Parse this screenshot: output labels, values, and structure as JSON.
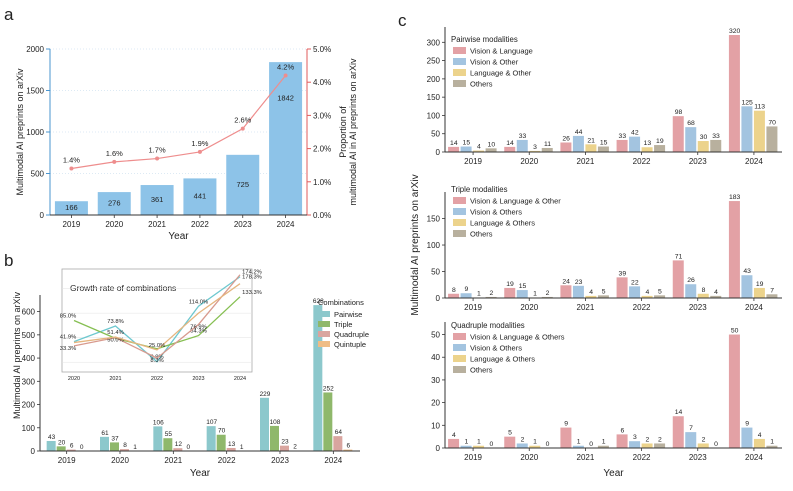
{
  "panels": {
    "a": "a",
    "b": "b",
    "c": "c"
  },
  "colors": {
    "bar_blue": "#8dc3e8",
    "line_red": "#ee8d8d",
    "axis_blue": "#4a95cf",
    "axis_red": "#e05b5b",
    "pairwise": "#8cc8cc",
    "triple": "#8fb86b",
    "quadruple": "#d9a59f",
    "quintuple": "#efbd86",
    "inset_pair": "#6dc8cf",
    "inset_triple": "#86bf52",
    "inset_quad": "#d89a8e",
    "inset_quin": "#e5b57f",
    "c_red": "#e3a1a5",
    "c_blue": "#a3c4e0",
    "c_yellow": "#ecd38c",
    "c_grey": "#b8b09e"
  },
  "chart_data": [
    {
      "id": "a",
      "type": "bar",
      "categories": [
        "2019",
        "2020",
        "2021",
        "2022",
        "2023",
        "2024"
      ],
      "values": [
        166,
        276,
        361,
        441,
        725,
        1842
      ],
      "value_labels": [
        "166",
        "276",
        "361",
        "441",
        "725",
        "1842"
      ],
      "line": [
        1.4,
        1.6,
        1.7,
        1.9,
        2.6,
        4.2
      ],
      "line_labels": [
        "1.4%",
        "1.6%",
        "1.7%",
        "1.9%",
        "2.6%",
        "4.2%"
      ],
      "xlabel": "Year",
      "ylabel": "Multimodal AI preprints on arXiv",
      "y2label_lines": [
        "Proportion of",
        "multimodal AI in AI preprints on arXiv"
      ],
      "ylim": [
        0,
        2000
      ],
      "yticks": [
        "0",
        "500",
        "1000",
        "1500",
        "2000"
      ],
      "y2lim": [
        0,
        5
      ],
      "y2ticks": [
        "0.0%",
        "1.0%",
        "2.0%",
        "3.0%",
        "4.0%",
        "5.0%"
      ]
    },
    {
      "id": "b",
      "type": "bar",
      "categories": [
        "2019",
        "2020",
        "2021",
        "2022",
        "2023",
        "2024"
      ],
      "series": [
        {
          "name": "Pairwise",
          "values": [
            43,
            61,
            106,
            107,
            229,
            628
          ]
        },
        {
          "name": "Triple",
          "values": [
            20,
            37,
            55,
            70,
            108,
            252
          ]
        },
        {
          "name": "Quadruple",
          "values": [
            6,
            8,
            12,
            13,
            23,
            64
          ]
        },
        {
          "name": "Quintuple",
          "values": [
            0,
            1,
            0,
            1,
            2,
            6
          ]
        }
      ],
      "xlabel": "Year",
      "ylabel": "Multimodal AI preprints on arXiv",
      "ylim": [
        0,
        650
      ],
      "yticks": [
        "0",
        "100",
        "200",
        "300",
        "400",
        "500",
        "600"
      ],
      "legend_title": "Combinations",
      "inset": {
        "type": "line",
        "title": "Growth rate of combinations",
        "categories": [
          "2020",
          "2021",
          "2022",
          "2023",
          "2024"
        ],
        "ylim": [
          -20,
          190
        ],
        "series": [
          {
            "name": "Pairwise",
            "values": [
              41.9,
              73.8,
              0.9,
              114.0,
              174.2
            ],
            "labels": [
              "41.9%",
              "73.8%",
              "0.9%",
              "114.0%",
              "174.2%"
            ]
          },
          {
            "name": "Triple",
            "values": [
              85.0,
              48.6,
              27.3,
              54.3,
              133.3
            ],
            "labels": [
              "85.0%",
              "",
              "",
              "54.3%",
              "133.3%"
            ]
          },
          {
            "name": "Quadruple",
            "values": [
              33.3,
              50.0,
              8.3,
              76.9,
              178.3
            ],
            "labels": [
              "33.3%",
              "50.0%",
              "8.3%",
              "76.9%",
              "178.3%"
            ]
          },
          {
            "name": "Quintuple",
            "values": [
              40,
              51.4,
              25.0,
              100.0,
              160.0
            ],
            "labels": [
              "",
              "51.4%",
              "25.0%",
              "",
              ""
            ]
          }
        ]
      }
    },
    {
      "id": "c",
      "type": "bar",
      "ylabel": "Multimodal AI preprints on arXiv",
      "xlabel": "Year",
      "categories": [
        "2019",
        "2020",
        "2021",
        "2022",
        "2023",
        "2024"
      ],
      "subplots": [
        {
          "title": "Pairwise modalities",
          "ylim": [
            0,
            320
          ],
          "yticks": [
            "0",
            "50",
            "100",
            "150",
            "200",
            "250",
            "300"
          ],
          "series": [
            {
              "name": "Vision & Language",
              "values": [
                14,
                14,
                26,
                33,
                98,
                320
              ]
            },
            {
              "name": "Vision & Other",
              "values": [
                15,
                33,
                44,
                42,
                68,
                125
              ]
            },
            {
              "name": "Language & Other",
              "values": [
                4,
                3,
                21,
                13,
                30,
                113
              ]
            },
            {
              "name": "Others",
              "values": [
                10,
                11,
                15,
                19,
                33,
                70
              ]
            }
          ]
        },
        {
          "title": "Triple modalities",
          "ylim": [
            0,
            185
          ],
          "yticks": [
            "0",
            "50",
            "100",
            "150"
          ],
          "series": [
            {
              "name": "Vision & Language & Other",
              "values": [
                8,
                19,
                24,
                39,
                71,
                183
              ]
            },
            {
              "name": "Vision & Others",
              "values": [
                9,
                15,
                23,
                22,
                26,
                43
              ]
            },
            {
              "name": "Language & Others",
              "values": [
                1,
                1,
                4,
                4,
                8,
                19
              ]
            },
            {
              "name": "Others",
              "values": [
                2,
                2,
                5,
                5,
                4,
                7
              ]
            }
          ]
        },
        {
          "title": "Quadruple modalities",
          "ylim": [
            0,
            52
          ],
          "yticks": [
            "0",
            "10",
            "20",
            "30",
            "40",
            "50"
          ],
          "series": [
            {
              "name": "Vision & Language & Others",
              "values": [
                4,
                5,
                9,
                6,
                14,
                50
              ]
            },
            {
              "name": "Vision & Others",
              "values": [
                1,
                2,
                1,
                3,
                7,
                9
              ]
            },
            {
              "name": "Language & Others",
              "values": [
                1,
                1,
                0,
                2,
                2,
                4
              ]
            },
            {
              "name": "Others",
              "values": [
                0,
                0,
                1,
                2,
                0,
                1
              ]
            }
          ]
        }
      ]
    }
  ]
}
